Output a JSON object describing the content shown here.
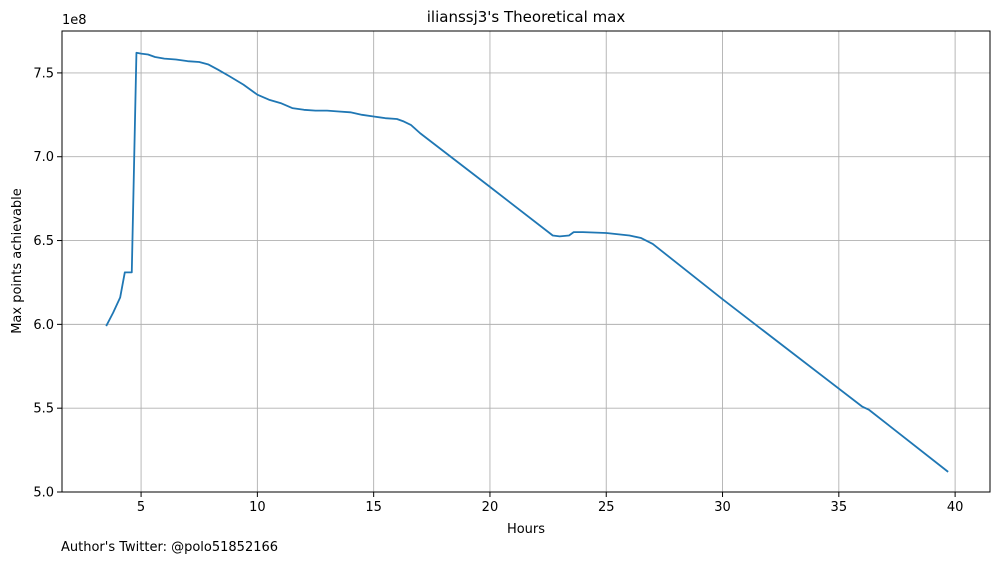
{
  "chart_data": {
    "type": "line",
    "title": "ilianssj3's Theoretical max",
    "xlabel": "Hours",
    "ylabel": "Max points achievable",
    "y_offset_label": "1e8",
    "footer": "Author's Twitter: @polo51852166",
    "xlim": [
      1.6,
      41.5
    ],
    "ylim": [
      5.0,
      7.75
    ],
    "x_ticks": [
      5,
      10,
      15,
      20,
      25,
      30,
      35,
      40
    ],
    "x_tick_labels": [
      "5",
      "10",
      "15",
      "20",
      "25",
      "30",
      "35",
      "40"
    ],
    "y_ticks": [
      5.0,
      5.5,
      6.0,
      6.5,
      7.0,
      7.5
    ],
    "y_tick_labels": [
      "5.0",
      "5.5",
      "6.0",
      "6.5",
      "7.0",
      "7.5"
    ],
    "grid": true,
    "series_color": "#1f77b4",
    "series": [
      {
        "x": [
          3.5,
          3.8,
          4.1,
          4.3,
          4.6,
          4.8,
          5.0,
          5.3,
          5.6,
          6.0,
          6.5,
          7.0,
          7.5,
          7.9,
          8.3,
          8.8,
          9.4,
          10.0,
          10.5,
          11.0,
          11.5,
          12.0,
          12.5,
          13.0,
          13.5,
          14.0,
          14.5,
          15.0,
          15.5,
          16.0,
          16.3,
          16.6,
          17.0,
          20.0,
          22.7,
          23.0,
          23.4,
          23.6,
          24.0,
          25.0,
          26.0,
          26.5,
          27.0,
          30.0,
          33.0,
          36.0,
          36.3,
          39.7
        ],
        "y": [
          5.99,
          6.07,
          6.16,
          6.31,
          6.31,
          7.62,
          7.615,
          7.61,
          7.595,
          7.585,
          7.58,
          7.57,
          7.565,
          7.55,
          7.52,
          7.48,
          7.43,
          7.37,
          7.34,
          7.32,
          7.29,
          7.28,
          7.275,
          7.275,
          7.27,
          7.265,
          7.25,
          7.24,
          7.23,
          7.225,
          7.21,
          7.19,
          7.14,
          6.82,
          6.53,
          6.525,
          6.53,
          6.55,
          6.55,
          6.545,
          6.53,
          6.515,
          6.48,
          6.15,
          5.83,
          5.51,
          5.49,
          5.12
        ]
      }
    ]
  }
}
